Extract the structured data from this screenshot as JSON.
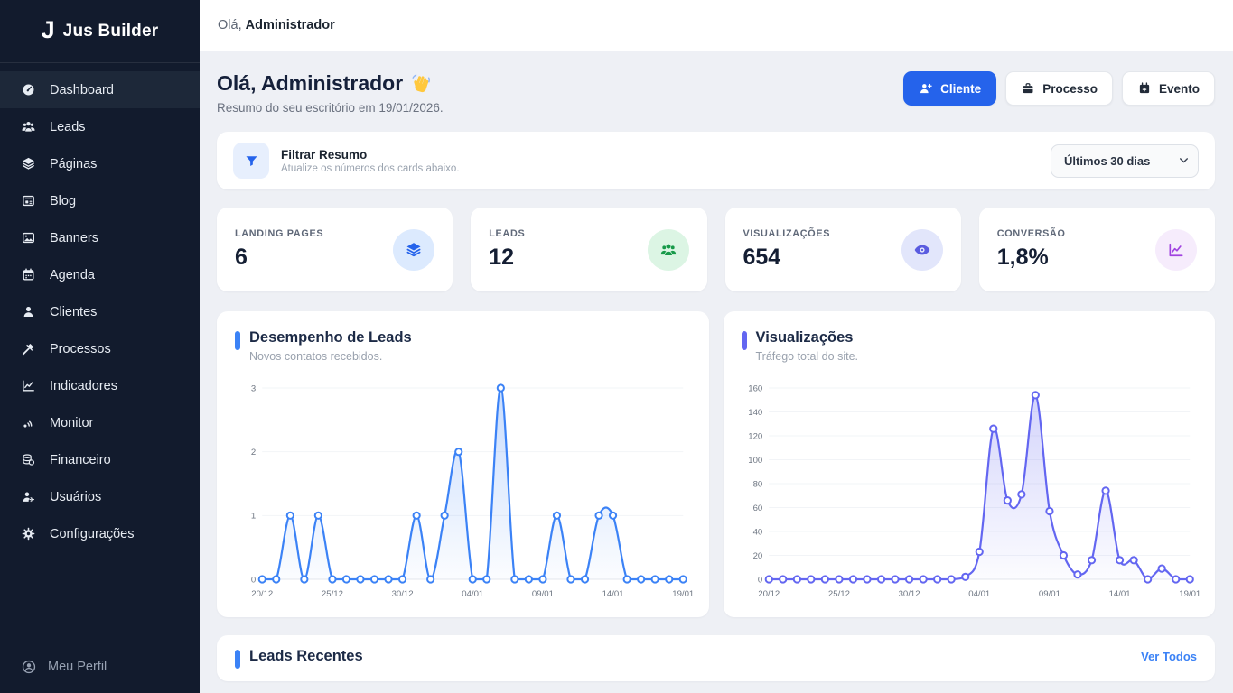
{
  "app": {
    "name": "Jus Builder",
    "logo_icon": "j-logo-icon"
  },
  "topbar": {
    "greeting_prefix": "Olá,",
    "user": "Administrador"
  },
  "sidebar": {
    "items": [
      {
        "label": "Dashboard",
        "icon": "gauge-icon",
        "active": true
      },
      {
        "label": "Leads",
        "icon": "users-icon",
        "active": false
      },
      {
        "label": "Páginas",
        "icon": "layers-icon",
        "active": false
      },
      {
        "label": "Blog",
        "icon": "newspaper-icon",
        "active": false
      },
      {
        "label": "Banners",
        "icon": "image-icon",
        "active": false
      },
      {
        "label": "Agenda",
        "icon": "calendar-icon",
        "active": false
      },
      {
        "label": "Clientes",
        "icon": "person-icon",
        "active": false
      },
      {
        "label": "Processos",
        "icon": "gavel-icon",
        "active": false
      },
      {
        "label": "Indicadores",
        "icon": "chart-line-icon",
        "active": false
      },
      {
        "label": "Monitor",
        "icon": "broadcast-icon",
        "active": false
      },
      {
        "label": "Financeiro",
        "icon": "coins-icon",
        "active": false
      },
      {
        "label": "Usuários",
        "icon": "user-gear-icon",
        "active": false
      },
      {
        "label": "Configurações",
        "icon": "gear-icon",
        "active": false
      }
    ],
    "profile": {
      "label": "Meu Perfil",
      "icon": "user-circle-icon"
    }
  },
  "header": {
    "title": "Olá, Administrador",
    "wave_icon": "waving-hand-icon",
    "subtitle": "Resumo do seu escritório em 19/01/2026."
  },
  "actions": {
    "cliente": "Cliente",
    "processo": "Processo",
    "evento": "Evento",
    "cliente_color": "#2563eb"
  },
  "filter": {
    "title": "Filtrar Resumo",
    "subtitle": "Atualize os números dos cards abaixo.",
    "icon": "funnel-icon",
    "select_value": "Últimos 30 dias"
  },
  "stats": [
    {
      "label": "LANDING PAGES",
      "value": "6",
      "icon": "layers-icon",
      "icon_color": "#2563eb",
      "icon_bg": "#dceafe"
    },
    {
      "label": "LEADS",
      "value": "12",
      "icon": "users-icon",
      "icon_color": "#189a4a",
      "icon_bg": "#dcf5e4"
    },
    {
      "label": "VISUALIZAÇÕES",
      "value": "654",
      "icon": "eye-icon",
      "icon_color": "#5a5ce0",
      "icon_bg": "#e2e6fb"
    },
    {
      "label": "CONVERSÃO",
      "value": "1,8%",
      "icon": "chart-line-icon",
      "icon_color": "#a143e0",
      "icon_bg": "#f6ecfc"
    }
  ],
  "bottom_card": {
    "title": "Leads Recentes",
    "link": "Ver Todos"
  },
  "chart_data": [
    {
      "type": "line",
      "title": "Desempenho de Leads",
      "subtitle": "Novos contatos recebidos.",
      "line_color": "#3b82f6",
      "x": [
        "20/12",
        "21/12",
        "22/12",
        "23/12",
        "24/12",
        "25/12",
        "26/12",
        "27/12",
        "28/12",
        "29/12",
        "30/12",
        "31/12",
        "01/01",
        "02/01",
        "03/01",
        "04/01",
        "05/01",
        "06/01",
        "07/01",
        "08/01",
        "09/01",
        "10/01",
        "11/01",
        "12/01",
        "13/01",
        "14/01",
        "15/01",
        "16/01",
        "17/01",
        "18/01",
        "19/01"
      ],
      "x_tick_labels": [
        "20/12",
        "25/12",
        "30/12",
        "04/01",
        "09/01",
        "14/01",
        "19/01"
      ],
      "x_tick_step": 5,
      "values": [
        0,
        0,
        1,
        0,
        1,
        0,
        0,
        0,
        0,
        0,
        0,
        1,
        0,
        1,
        2,
        0,
        0,
        3,
        0,
        0,
        0,
        1,
        0,
        0,
        1,
        1,
        0,
        0,
        0,
        0,
        0
      ],
      "y_ticks": [
        0,
        1,
        2,
        3
      ],
      "ylim": [
        0,
        3
      ],
      "grid": true,
      "legend": "none"
    },
    {
      "type": "line",
      "title": "Visualizações",
      "subtitle": "Tráfego total do site.",
      "line_color": "#6366f1",
      "x": [
        "20/12",
        "21/12",
        "22/12",
        "23/12",
        "24/12",
        "25/12",
        "26/12",
        "27/12",
        "28/12",
        "29/12",
        "30/12",
        "31/12",
        "01/01",
        "02/01",
        "03/01",
        "04/01",
        "05/01",
        "06/01",
        "07/01",
        "08/01",
        "09/01",
        "10/01",
        "11/01",
        "12/01",
        "13/01",
        "14/01",
        "15/01",
        "16/01",
        "17/01",
        "18/01",
        "19/01"
      ],
      "x_tick_labels": [
        "20/12",
        "25/12",
        "30/12",
        "04/01",
        "09/01",
        "14/01",
        "19/01"
      ],
      "x_tick_step": 5,
      "values": [
        0,
        0,
        0,
        0,
        0,
        0,
        0,
        0,
        0,
        0,
        0,
        0,
        0,
        0,
        2,
        23,
        126,
        66,
        71,
        154,
        57,
        20,
        4,
        16,
        74,
        16,
        16,
        0,
        9,
        0,
        0
      ],
      "y_ticks": [
        0,
        20,
        40,
        60,
        80,
        100,
        120,
        140,
        160
      ],
      "ylim": [
        0,
        160
      ],
      "grid": true,
      "legend": "none"
    }
  ]
}
